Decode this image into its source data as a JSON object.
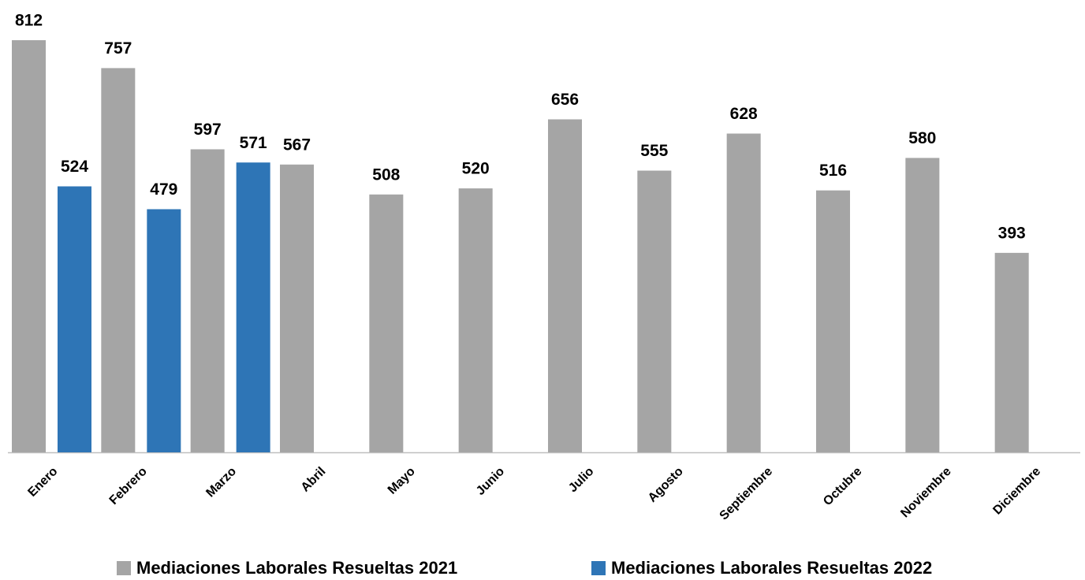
{
  "chart_data": {
    "type": "bar",
    "categories": [
      "Enero",
      "Febrero",
      "Marzo",
      "Abril",
      "Mayo",
      "Junio",
      "Julio",
      "Agosto",
      "Septiembre",
      "Octubre",
      "Noviembre",
      "Diciembre"
    ],
    "series": [
      {
        "name": "Mediaciones Laborales Resueltas 2021",
        "color": "#a5a5a5",
        "values": [
          812,
          757,
          597,
          567,
          508,
          520,
          656,
          555,
          628,
          516,
          580,
          393
        ]
      },
      {
        "name": "Mediaciones Laborales Resueltas 2022",
        "color": "#2e75b6",
        "values": [
          524,
          479,
          571,
          null,
          null,
          null,
          null,
          null,
          null,
          null,
          null,
          null
        ]
      }
    ],
    "ylim": [
      0,
      900
    ],
    "legend": "bottom"
  }
}
